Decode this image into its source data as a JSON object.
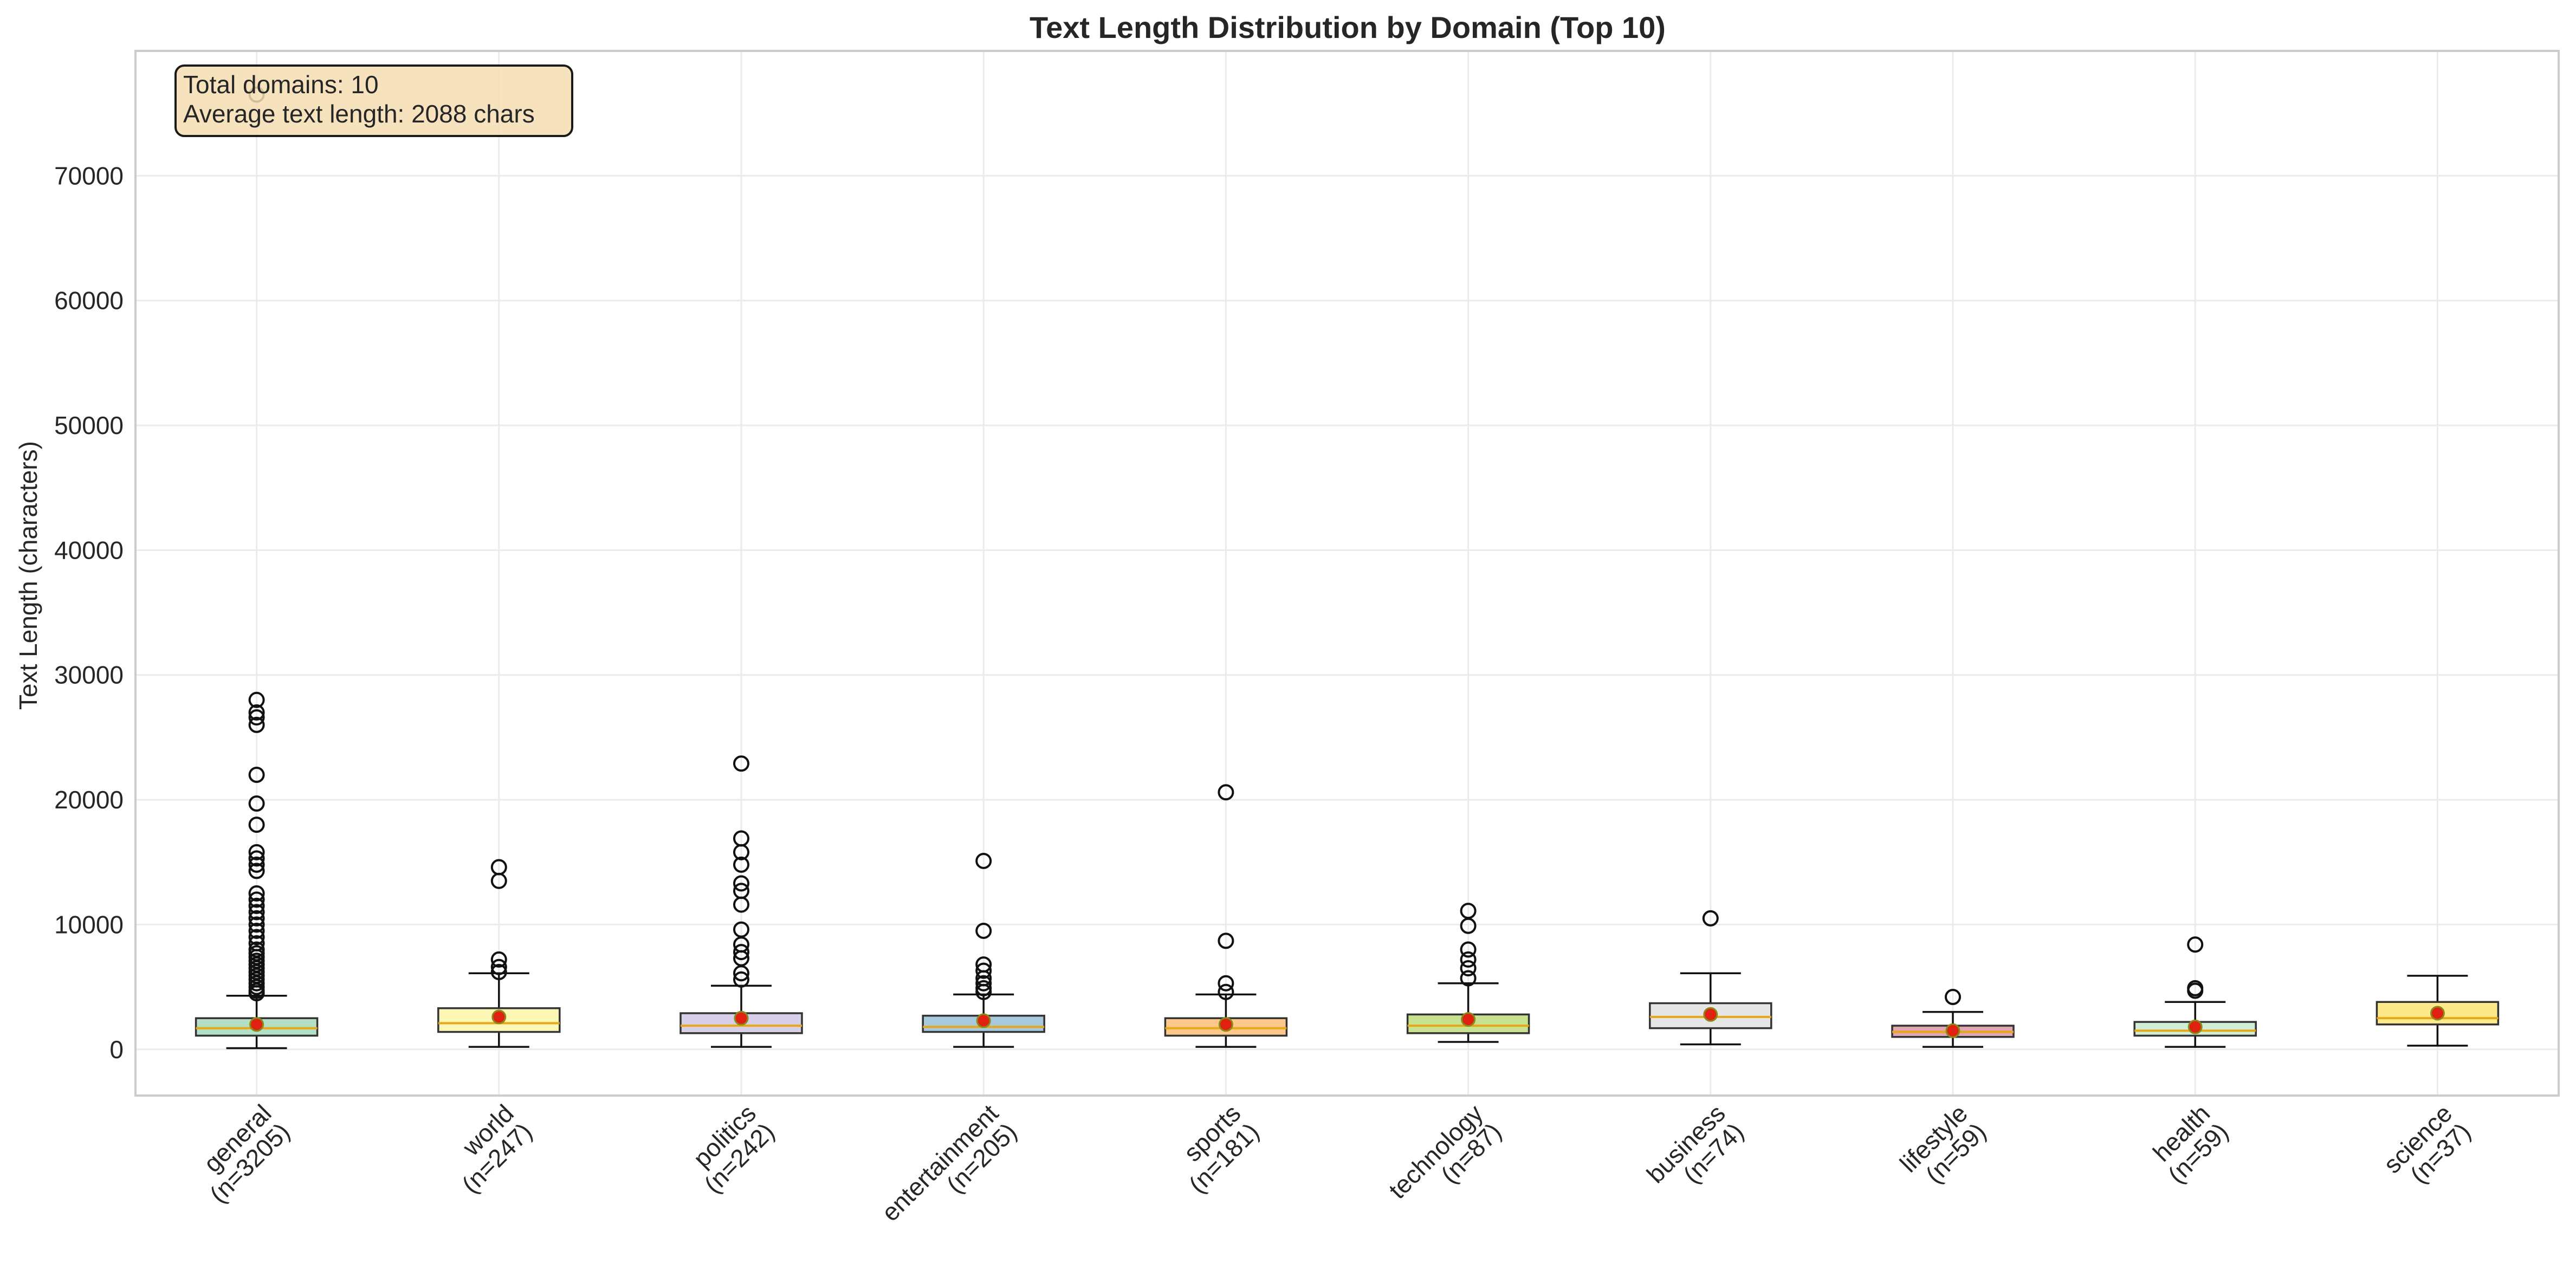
{
  "chart_data": {
    "type": "box",
    "title": "Text Length Distribution by Domain (Top 10)",
    "xlabel": "",
    "ylabel": "Text Length (characters)",
    "ylim": [
      -3700,
      80000
    ],
    "yticks": [
      0,
      10000,
      20000,
      30000,
      40000,
      50000,
      60000,
      70000
    ],
    "grid": true,
    "annotation_lines": [
      "Total domains: 10",
      "Average text length: 2088 chars"
    ],
    "annotation_position": "top-left",
    "median_color": "#e6a817",
    "mean_marker_color": "#e02010",
    "categories": [
      {
        "name": "general",
        "n_label": "(n=3205)",
        "color": "#b3dfc4",
        "q1": 1100,
        "median": 1700,
        "q3": 2500,
        "whisker_low": 100,
        "whisker_high": 4300,
        "mean": 2000,
        "outliers": [
          4500,
          4700,
          5000,
          5300,
          5600,
          5900,
          6200,
          6500,
          6800,
          7100,
          7400,
          7700,
          8000,
          8500,
          9000,
          9500,
          10000,
          10500,
          11000,
          11500,
          12000,
          12500,
          14300,
          14800,
          15300,
          15800,
          18000,
          19700,
          22000,
          26000,
          26600,
          27000,
          28000,
          76500
        ]
      },
      {
        "name": "world",
        "n_label": "(n=247)",
        "color": "#fdf7b6",
        "q1": 1400,
        "median": 2100,
        "q3": 3300,
        "whisker_low": 200,
        "whisker_high": 6100,
        "mean": 2600,
        "outliers": [
          6200,
          6600,
          7200,
          13500,
          14600
        ]
      },
      {
        "name": "politics",
        "n_label": "(n=242)",
        "color": "#d7cfe8",
        "q1": 1300,
        "median": 1900,
        "q3": 2900,
        "whisker_low": 200,
        "whisker_high": 5100,
        "mean": 2500,
        "outliers": [
          5600,
          6100,
          7300,
          7800,
          8400,
          9600,
          11600,
          12700,
          13300,
          14800,
          15800,
          16900,
          22900
        ]
      },
      {
        "name": "entertainment",
        "n_label": "(n=205)",
        "color": "#a8c8dc",
        "q1": 1400,
        "median": 1800,
        "q3": 2700,
        "whisker_low": 200,
        "whisker_high": 4400,
        "mean": 2300,
        "outliers": [
          4600,
          4900,
          5300,
          5700,
          6300,
          6800,
          9500,
          15100
        ]
      },
      {
        "name": "sports",
        "n_label": "(n=181)",
        "color": "#fdc88a",
        "q1": 1100,
        "median": 1700,
        "q3": 2500,
        "whisker_low": 200,
        "whisker_high": 4400,
        "mean": 2000,
        "outliers": [
          4600,
          5300,
          8700,
          20600
        ]
      },
      {
        "name": "technology",
        "n_label": "(n=87)",
        "color": "#c6e28e",
        "q1": 1300,
        "median": 1900,
        "q3": 2800,
        "whisker_low": 600,
        "whisker_high": 5300,
        "mean": 2400,
        "outliers": [
          5700,
          6500,
          7200,
          8000,
          9900,
          11100
        ]
      },
      {
        "name": "business",
        "n_label": "(n=74)",
        "color": "#e6e6e6",
        "q1": 1700,
        "median": 2600,
        "q3": 3700,
        "whisker_low": 400,
        "whisker_high": 6100,
        "mean": 2800,
        "outliers": [
          10500
        ]
      },
      {
        "name": "lifestyle",
        "n_label": "(n=59)",
        "color": "#e2a6b2",
        "q1": 1000,
        "median": 1400,
        "q3": 1900,
        "whisker_low": 200,
        "whisker_high": 3000,
        "mean": 1500,
        "outliers": [
          4200
        ]
      },
      {
        "name": "health",
        "n_label": "(n=59)",
        "color": "#d0ecd4",
        "q1": 1100,
        "median": 1500,
        "q3": 2200,
        "whisker_low": 200,
        "whisker_high": 3800,
        "mean": 1800,
        "outliers": [
          4700,
          4900,
          8400
        ]
      },
      {
        "name": "science",
        "n_label": "(n=37)",
        "color": "#fde88a",
        "q1": 2000,
        "median": 2500,
        "q3": 3800,
        "whisker_low": 300,
        "whisker_high": 5900,
        "mean": 2900,
        "outliers": []
      }
    ]
  }
}
